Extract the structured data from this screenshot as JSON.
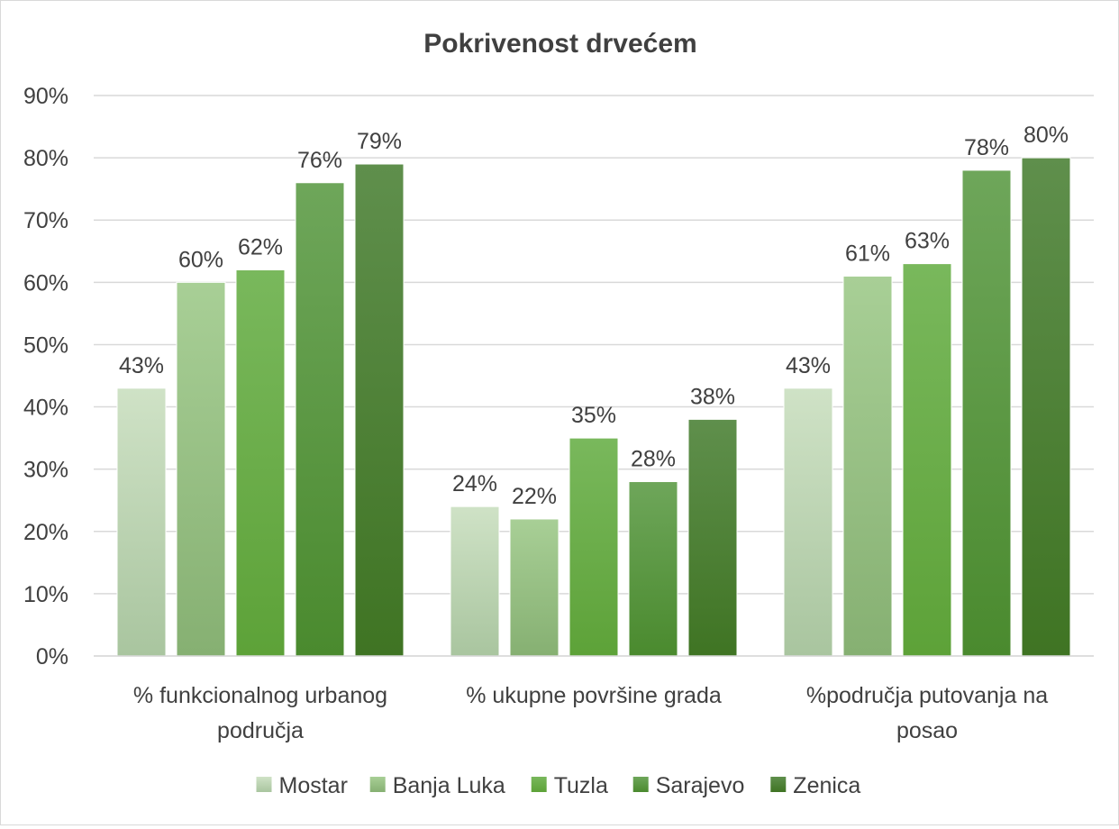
{
  "chart_data": {
    "type": "bar",
    "title": "Pokrivenost drvećem",
    "categories": [
      [
        "% funkcionalnog urbanog",
        "područja"
      ],
      [
        "% ukupne površine grada"
      ],
      [
        "%područja putovanja na",
        "posao"
      ]
    ],
    "series": [
      {
        "name": "Mostar",
        "values": [
          0.43,
          0.24,
          0.43
        ],
        "labels": [
          "43%",
          "24%",
          "43%"
        ],
        "color_top": "#cfe2c6",
        "color_bottom": "#a9c59f"
      },
      {
        "name": "Banja Luka",
        "values": [
          0.6,
          0.22,
          0.61
        ],
        "labels": [
          "60%",
          "22%",
          "61%"
        ],
        "color_top": "#a8cf96",
        "color_bottom": "#86b072"
      },
      {
        "name": "Tuzla",
        "values": [
          0.62,
          0.35,
          0.63
        ],
        "labels": [
          "62%",
          "35%",
          "63%"
        ],
        "color_top": "#79b85c",
        "color_bottom": "#5da238"
      },
      {
        "name": "Sarajevo",
        "values": [
          0.76,
          0.28,
          0.78
        ],
        "labels": [
          "76%",
          "28%",
          "78%"
        ],
        "color_top": "#6ea65a",
        "color_bottom": "#4a8a2e"
      },
      {
        "name": "Zenica",
        "values": [
          0.79,
          0.38,
          0.8
        ],
        "labels": [
          "79%",
          "38%",
          "80%"
        ],
        "color_top": "#5f8f4c",
        "color_bottom": "#3f7423"
      }
    ],
    "yticks": [
      "0%",
      "10%",
      "20%",
      "30%",
      "40%",
      "50%",
      "60%",
      "70%",
      "80%",
      "90%"
    ],
    "ylim": [
      0,
      0.9
    ],
    "grid": true,
    "gridline_color": "#d9d9d9",
    "legend_position": "bottom"
  }
}
